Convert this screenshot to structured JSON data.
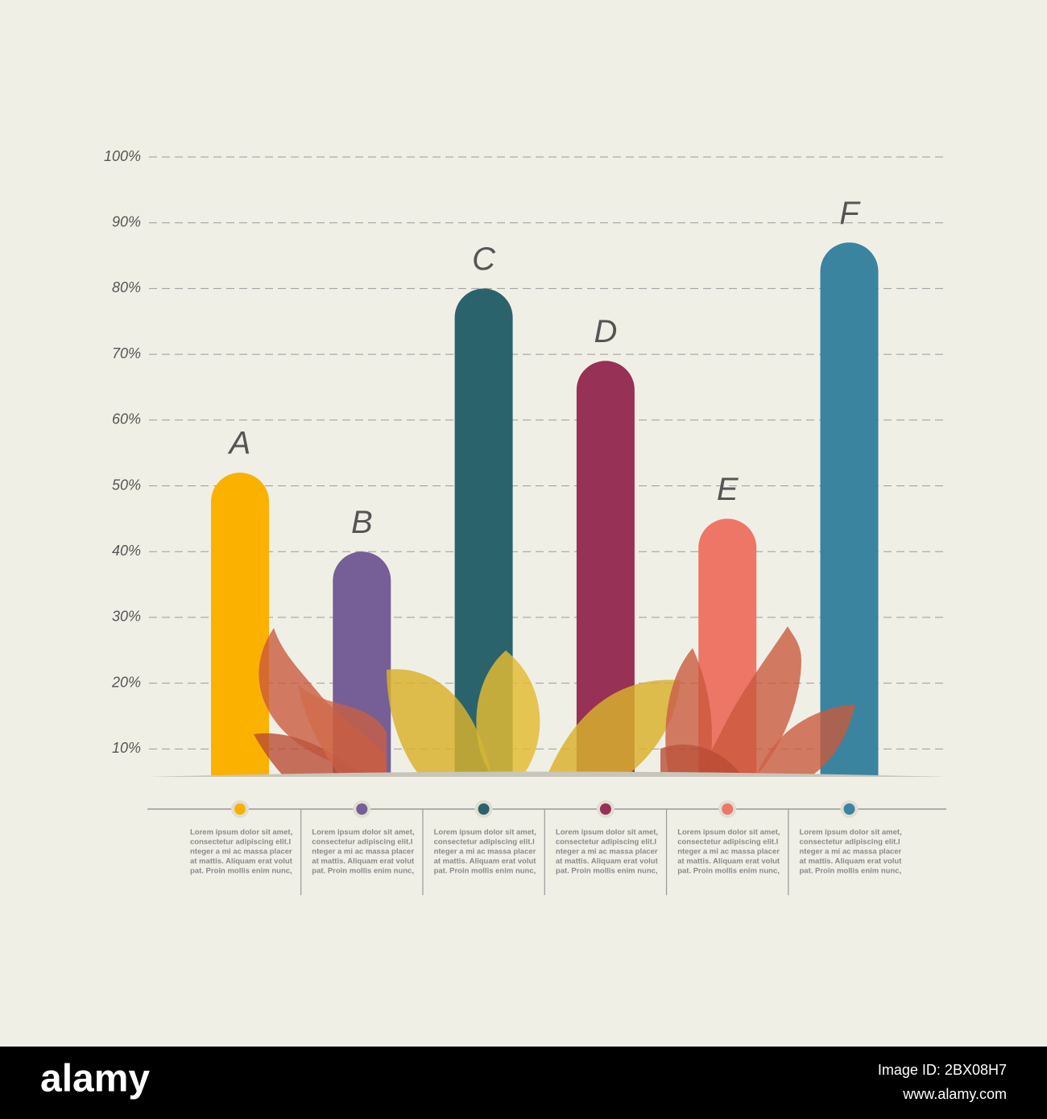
{
  "chart_data": {
    "type": "bar",
    "categories": [
      "A",
      "B",
      "C",
      "D",
      "E",
      "F"
    ],
    "values": [
      52,
      40,
      80,
      69,
      45,
      87
    ],
    "colors": [
      "#fbb100",
      "#765e96",
      "#2a636b",
      "#973155",
      "#ee7667",
      "#3a849f"
    ],
    "ylim": [
      6,
      100
    ],
    "yticks": [
      {
        "value": 10,
        "label": "10%"
      },
      {
        "value": 20,
        "label": "20%"
      },
      {
        "value": 30,
        "label": "30%"
      },
      {
        "value": 40,
        "label": "40%"
      },
      {
        "value": 50,
        "label": "50%"
      },
      {
        "value": 60,
        "label": "60%"
      },
      {
        "value": 70,
        "label": "70%"
      },
      {
        "value": 80,
        "label": "80%"
      },
      {
        "value": 90,
        "label": "90%"
      },
      {
        "value": 100,
        "label": "100%"
      }
    ],
    "grid": true,
    "descriptions": [
      [
        "Lorem ipsum dolor sit amet,",
        "consectetur adipiscing elit.I",
        "nteger a mi ac massa placer",
        "at mattis. Aliquam erat volut",
        "pat. Proin mollis enim nunc,"
      ],
      [
        "Lorem ipsum dolor sit amet,",
        "consectetur adipiscing elit.I",
        "nteger a mi ac massa placer",
        "at mattis. Aliquam erat volut",
        "pat. Proin mollis enim nunc,"
      ],
      [
        "Lorem ipsum dolor sit amet,",
        "consectetur adipiscing elit.I",
        "nteger a mi ac massa placer",
        "at mattis. Aliquam erat volut",
        "pat. Proin mollis enim nunc,"
      ],
      [
        "Lorem ipsum dolor sit amet,",
        "consectetur adipiscing elit.I",
        "nteger a mi ac massa placer",
        "at mattis. Aliquam erat volut",
        "pat. Proin mollis enim nunc,"
      ],
      [
        "Lorem ipsum dolor sit amet,",
        "consectetur adipiscing elit.I",
        "nteger a mi ac massa placer",
        "at mattis. Aliquam erat volut",
        "pat. Proin mollis enim nunc,"
      ],
      [
        "Lorem ipsum dolor sit amet,",
        "consectetur adipiscing elit.I",
        "nteger a mi ac massa placer",
        "at mattis. Aliquam erat volut",
        "pat. Proin mollis enim nunc,"
      ]
    ]
  },
  "footer": {
    "brand": "alamy",
    "image_id": "Image ID: 2BX08H7",
    "url": "www.alamy.com"
  }
}
